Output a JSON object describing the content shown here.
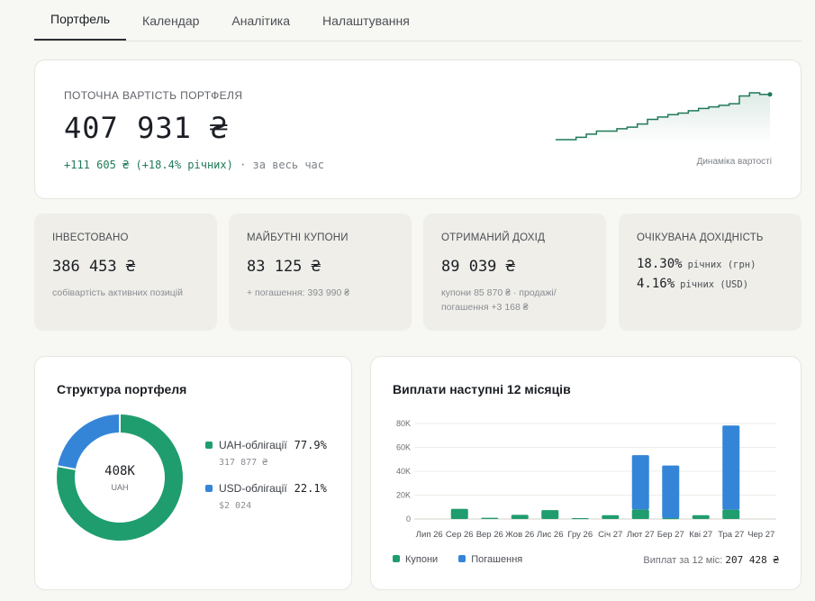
{
  "tabs": [
    {
      "label": "Портфель",
      "active": true
    },
    {
      "label": "Календар",
      "active": false
    },
    {
      "label": "Аналітика",
      "active": false
    },
    {
      "label": "Налаштування",
      "active": false
    }
  ],
  "hero": {
    "label": "ПОТОЧНА ВАРТІСТЬ ПОРТФЕЛЯ",
    "value": "407 931 ₴",
    "change": "+111 605 ₴ (+18.4% річних)",
    "change_suffix": "· за весь час",
    "sparkline_caption": "Динаміка вартості",
    "sparkline_color": "#1f7a57"
  },
  "stats": {
    "invested": {
      "label": "ІНВЕСТОВАНО",
      "value": "386 453 ₴",
      "note": "собівартість активних позицій"
    },
    "future_coupons": {
      "label": "МАЙБУТНІ КУПОНИ",
      "value": "83 125 ₴",
      "note": "+ погашення: 393 990 ₴"
    },
    "received_income": {
      "label": "ОТРИМАНИЙ ДОХІД",
      "value": "89 039 ₴",
      "note": "купони 85 870 ₴ · продажі/погашення +3 168 ₴"
    },
    "expected_yield": {
      "label": "ОЧІКУВАНА ДОХІДНІСТЬ",
      "rows": [
        {
          "value": "18.30%",
          "sub": "річних (грн)"
        },
        {
          "value": "4.16%",
          "sub": "річних (USD)"
        }
      ]
    }
  },
  "structure": {
    "title": "Структура портфеля",
    "center_value": "408K",
    "center_sub": "UAH",
    "items": [
      {
        "name": "UAH-облігації",
        "pct": "77.9%",
        "sub": "317 877 ₴",
        "color": "#1f9d6e",
        "share": 0.779
      },
      {
        "name": "USD-облігації",
        "pct": "22.1%",
        "sub": "$2 024",
        "color": "#3485d8",
        "share": 0.221
      }
    ]
  },
  "payments": {
    "title": "Виплати наступні 12 місяців",
    "legend": [
      {
        "name": "Купони",
        "color": "#1f9d6e"
      },
      {
        "name": "Погашення",
        "color": "#3485d8"
      }
    ],
    "total_label": "Виплат за 12 міс:",
    "total_value": "207 428 ₴"
  },
  "chart_data": {
    "type": "bar",
    "stacked": true,
    "title": "Виплати наступні 12 місяців",
    "categories": [
      "Лип 26",
      "Сер 26",
      "Вер 26",
      "Жов 26",
      "Лис 26",
      "Гру 26",
      "Січ 27",
      "Лют 27",
      "Бер 27",
      "Кві 27",
      "Тра 27",
      "Чер 27"
    ],
    "series": [
      {
        "name": "Купони",
        "color": "#1f9d6e",
        "values": [
          0,
          8500,
          1000,
          3500,
          7500,
          800,
          3200,
          8000,
          800,
          3200,
          7800,
          0
        ]
      },
      {
        "name": "Погашення",
        "color": "#3485d8",
        "values": [
          0,
          0,
          0,
          0,
          0,
          0,
          0,
          45500,
          44000,
          0,
          70500,
          0
        ]
      }
    ],
    "yticks": [
      "0",
      "20K",
      "40K",
      "60K",
      "80K"
    ],
    "ylim": [
      0,
      80000
    ],
    "grid": true
  },
  "sparkline_values": [
    0,
    0,
    3,
    7,
    11,
    11,
    14,
    16,
    20,
    26,
    29,
    32,
    34,
    37,
    40,
    42,
    44,
    46,
    56,
    60,
    58,
    58
  ]
}
